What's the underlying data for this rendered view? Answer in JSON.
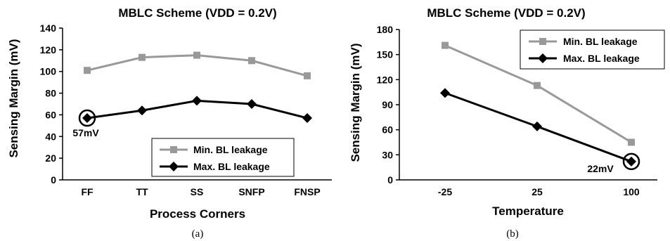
{
  "chart_data": [
    {
      "type": "line",
      "label": "(a)",
      "title": "MBLC Scheme (VDD = 0.2V)",
      "xlabel": "Process Corners",
      "ylabel": "Sensing Margin (mV)",
      "categories": [
        "FF",
        "TT",
        "SS",
        "SNFP",
        "FNSP"
      ],
      "ylim": [
        0,
        140
      ],
      "yticks": [
        0,
        20,
        40,
        60,
        80,
        100,
        120,
        140
      ],
      "legend_position": "bottom-right",
      "series": [
        {
          "name": "Min. BL leakage",
          "values": [
            101,
            113,
            115,
            110,
            96
          ],
          "color": "#999999",
          "marker": "square"
        },
        {
          "name": "Max. BL leakage",
          "values": [
            57,
            64,
            73,
            70,
            57
          ],
          "color": "#000000",
          "marker": "diamond"
        }
      ],
      "annotation": {
        "text": "57mV",
        "series": 1,
        "point": 0
      }
    },
    {
      "type": "line",
      "label": "(b)",
      "title": "MBLC Scheme (VDD = 0.2V)",
      "xlabel": "Temperature",
      "ylabel": "Sensing Margin (mV)",
      "categories": [
        "-25",
        "25",
        "100"
      ],
      "ylim": [
        0,
        180
      ],
      "yticks": [
        0,
        30,
        60,
        90,
        120,
        150,
        180
      ],
      "legend_position": "top-right",
      "series": [
        {
          "name": "Min. BL leakage",
          "values": [
            161,
            113,
            45
          ],
          "color": "#999999",
          "marker": "square"
        },
        {
          "name": "Max. BL leakage",
          "values": [
            104,
            64,
            22
          ],
          "color": "#000000",
          "marker": "diamond"
        }
      ],
      "annotation": {
        "text": "22mV",
        "series": 1,
        "point": 2
      }
    }
  ]
}
